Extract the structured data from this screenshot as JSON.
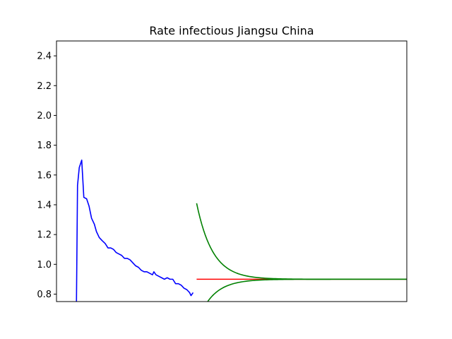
{
  "chart_data": {
    "type": "line",
    "title": "Rate infectious Jiangsu China",
    "xlabel": "",
    "ylabel": "",
    "ylim": [
      0.75,
      2.5
    ],
    "xlim": [
      0,
      100
    ],
    "x_ticks_shown": false,
    "grid": false,
    "y_ticks": [
      0.8,
      1.0,
      1.2,
      1.4,
      1.6,
      1.8,
      2.0,
      2.2,
      2.4
    ],
    "y_tick_labels": [
      "0.8",
      "1.0",
      "1.2",
      "1.4",
      "1.6",
      "1.8",
      "2.0",
      "2.2",
      "2.4"
    ],
    "series": [
      {
        "color": "#0000ff",
        "points": [
          [
            5.7,
            0.75
          ],
          [
            6.0,
            1.53
          ],
          [
            6.5,
            1.65
          ],
          [
            7.2,
            1.7
          ],
          [
            7.8,
            1.45
          ],
          [
            8.6,
            1.44
          ],
          [
            9.3,
            1.39
          ],
          [
            10.0,
            1.31
          ],
          [
            10.8,
            1.27
          ],
          [
            11.4,
            1.22
          ],
          [
            12.2,
            1.18
          ],
          [
            13.0,
            1.16
          ],
          [
            13.9,
            1.14
          ],
          [
            14.7,
            1.11
          ],
          [
            15.5,
            1.11
          ],
          [
            16.3,
            1.1
          ],
          [
            17.0,
            1.08
          ],
          [
            17.8,
            1.07
          ],
          [
            18.6,
            1.06
          ],
          [
            19.4,
            1.04
          ],
          [
            20.2,
            1.04
          ],
          [
            21.0,
            1.03
          ],
          [
            21.8,
            1.01
          ],
          [
            22.6,
            0.99
          ],
          [
            23.4,
            0.98
          ],
          [
            24.2,
            0.96
          ],
          [
            25.0,
            0.95
          ],
          [
            25.8,
            0.95
          ],
          [
            26.6,
            0.94
          ],
          [
            27.4,
            0.93
          ],
          [
            27.8,
            0.95
          ],
          [
            28.4,
            0.93
          ],
          [
            29.2,
            0.92
          ],
          [
            30.0,
            0.91
          ],
          [
            30.8,
            0.9
          ],
          [
            31.6,
            0.91
          ],
          [
            32.4,
            0.9
          ],
          [
            33.2,
            0.9
          ],
          [
            34.0,
            0.87
          ],
          [
            34.8,
            0.87
          ],
          [
            35.6,
            0.86
          ],
          [
            36.4,
            0.84
          ],
          [
            37.2,
            0.83
          ],
          [
            38.0,
            0.81
          ],
          [
            38.4,
            0.79
          ],
          [
            39.0,
            0.81
          ]
        ]
      },
      {
        "color": "#ff0000",
        "points": [
          [
            40.0,
            0.9
          ],
          [
            100.0,
            0.9
          ]
        ]
      },
      {
        "color": "#008000",
        "curve": "decay",
        "from": 1.41,
        "to": 0.9,
        "x_range": [
          40.0,
          100.0
        ],
        "rate": 0.22
      },
      {
        "color": "#008000",
        "curve": "decay",
        "from": 0.6,
        "to": 0.9,
        "x_range": [
          40.0,
          100.0
        ],
        "rate": 0.22
      }
    ]
  }
}
